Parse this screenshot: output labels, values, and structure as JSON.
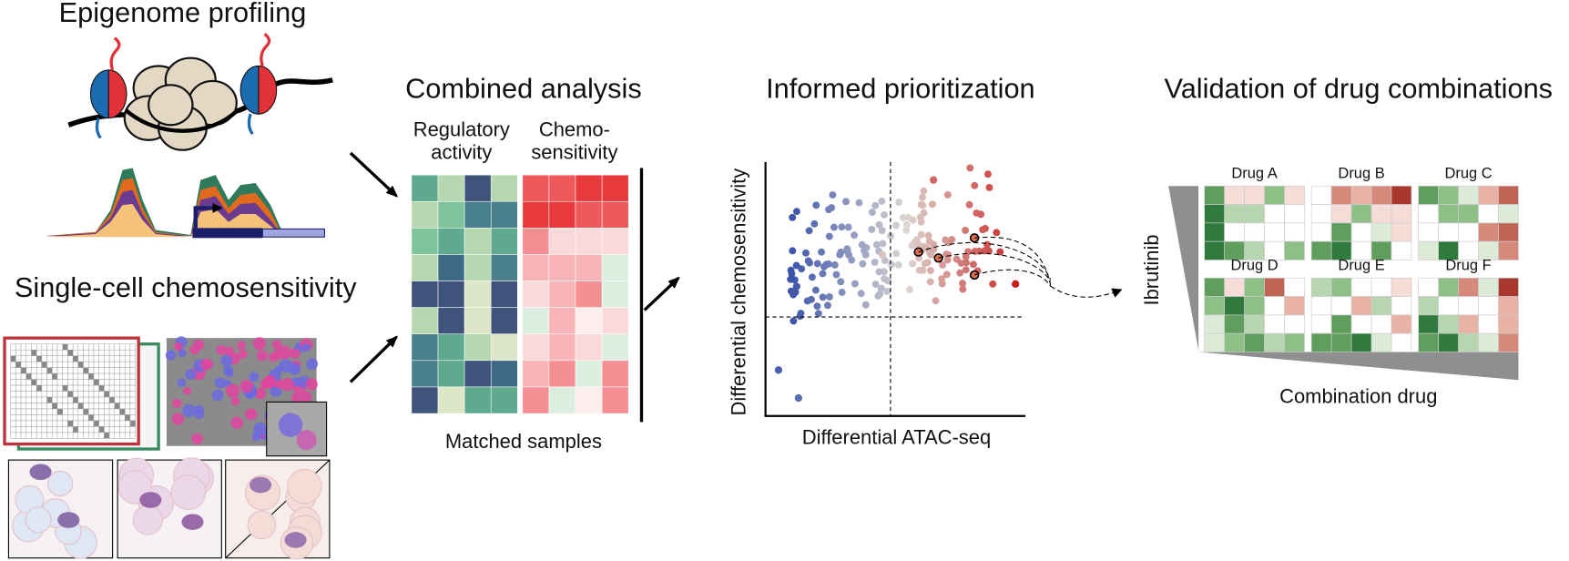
{
  "panels": {
    "epigenome": {
      "title": "Epigenome profiling"
    },
    "chemosensitivity": {
      "title": "Single-cell chemosensitivity"
    },
    "combined": {
      "title": "Combined analysis",
      "col_labels": [
        [
          "Regulatory",
          "activity"
        ],
        [
          "Chemo-",
          "sensitivity"
        ]
      ],
      "footer": "Matched samples"
    },
    "prioritization": {
      "title": "Informed prioritization",
      "y_label": "Differential chemosensitivity",
      "x_label": "Differential ATAC-seq"
    },
    "validation": {
      "title": "Validation of drug combinations",
      "y_label": "Ibrutinib",
      "x_label": "Combination drug",
      "drugs": [
        "Drug A",
        "Drug B",
        "Drug C",
        "Drug D",
        "Drug E",
        "Drug F"
      ]
    }
  }
}
